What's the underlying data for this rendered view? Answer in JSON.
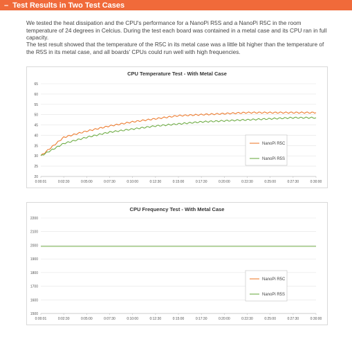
{
  "header": {
    "dash": "–",
    "title": "Test Results in Two Test Cases"
  },
  "paragraphs": {
    "p1": "We tested the heat dissipation and the CPU's performance for a NanoPi R5S and a NanoPi R5C in the room temperature of 24 degrees in Celcius. During the test each board was contained in a metal case and its CPU ran in full capacity.",
    "p2": "The test result showed that the temperature of the R5C in its metal case was a little bit higher than the temperature of the R5S in its metal case, and all boards' CPUs could run well with high frequencies."
  },
  "colors": {
    "header": "#f06a3a",
    "series_orange": "#ed7d31",
    "series_green": "#70ad47"
  },
  "chart_data": [
    {
      "type": "line",
      "title": "CPU Temperature Test - With Metal Case",
      "x": [
        "0:00:01",
        "0:02:30",
        "0:05:00",
        "0:07:30",
        "0:10:00",
        "0:12:30",
        "0:15:00",
        "0:17:30",
        "0:20:00",
        "0:22:30",
        "0:25:00",
        "0:27:30",
        "0:30:00"
      ],
      "yticks": [
        20,
        25,
        30,
        35,
        40,
        45,
        50,
        55,
        60,
        65
      ],
      "ylim": [
        20,
        65
      ],
      "series": [
        {
          "name": "NanoPi R5C",
          "color": "#ed7d31",
          "values": [
            30,
            39,
            42,
            44.5,
            46.5,
            48,
            49.5,
            50,
            50.5,
            51,
            51,
            51,
            51
          ]
        },
        {
          "name": "NanoPi R5S",
          "color": "#70ad47",
          "values": [
            30,
            36,
            39,
            41.5,
            43,
            44.5,
            45.5,
            46.5,
            47,
            47.5,
            48,
            48.5,
            48.5
          ]
        }
      ],
      "legend_position": "right"
    },
    {
      "type": "line",
      "title": "CPU Frequency Test - With Metal Case",
      "x": [
        "0:00:01",
        "0:02:30",
        "0:05:00",
        "0:07:30",
        "0:10:00",
        "0:12:30",
        "0:15:00",
        "0:17:30",
        "0:20:00",
        "0:22:30",
        "0:25:00",
        "0:27:30",
        "0:30:00"
      ],
      "yticks": [
        1500,
        1600,
        1700,
        1800,
        1900,
        2000,
        2100,
        2200
      ],
      "ylim": [
        1500,
        2200
      ],
      "series": [
        {
          "name": "NanoPi R5C",
          "color": "#ed7d31",
          "values": [
            1992,
            1992,
            1992,
            1992,
            1992,
            1992,
            1992,
            1992,
            1992,
            1992,
            1992,
            1992,
            1992
          ]
        },
        {
          "name": "NanoPi R5S",
          "color": "#70ad47",
          "values": [
            1992,
            1992,
            1992,
            1992,
            1992,
            1992,
            1992,
            1992,
            1992,
            1992,
            1992,
            1992,
            1992
          ]
        }
      ],
      "legend_position": "right"
    }
  ]
}
